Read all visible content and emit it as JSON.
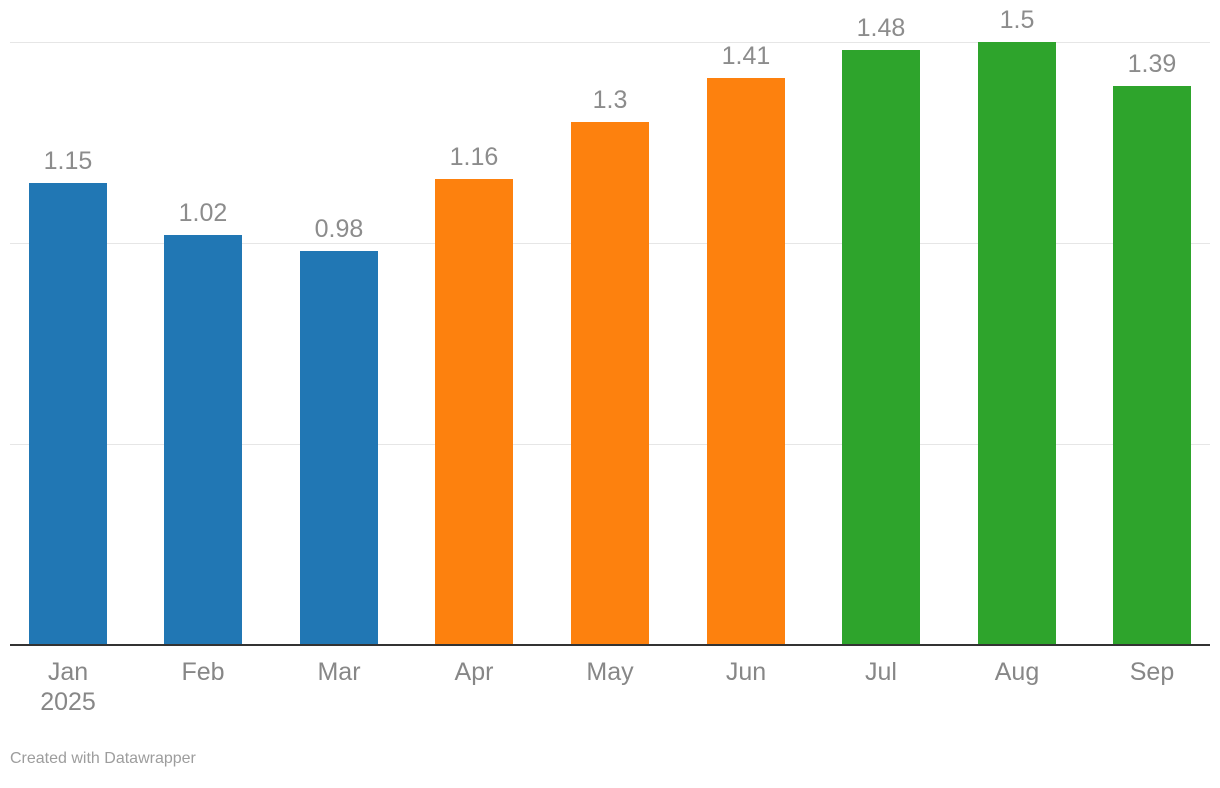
{
  "chart_data": {
    "type": "bar",
    "categories": [
      "Jan",
      "Feb",
      "Mar",
      "Apr",
      "May",
      "Jun",
      "Jul",
      "Aug",
      "Sep"
    ],
    "category_sublabels": [
      "2025",
      "",
      "",
      "",
      "",
      "",
      "",
      "",
      ""
    ],
    "values": [
      1.15,
      1.02,
      0.98,
      1.16,
      1.3,
      1.41,
      1.48,
      1.5,
      1.39
    ],
    "value_labels": [
      "1.15",
      "1.02",
      "0.98",
      "1.16",
      "1.3",
      "1.41",
      "1.48",
      "1.5",
      "1.39"
    ],
    "bar_colors": [
      "#2177b4",
      "#2177b4",
      "#2177b4",
      "#fd810e",
      "#fd810e",
      "#fd810e",
      "#2ea42c",
      "#2ea42c",
      "#2ea42c"
    ],
    "title": "",
    "xlabel": "",
    "ylabel": "",
    "ylim": [
      0,
      1.5
    ],
    "gridline_values": [
      0.5,
      1.0,
      1.5
    ],
    "grid": true,
    "legend_position": "none"
  },
  "colors": {
    "blue": "#2177b4",
    "orange": "#fd810e",
    "green": "#2ea42c",
    "gridline": "#e6e6e6",
    "axis_line": "#333333",
    "value_label": "#8c8c8c",
    "tick_label": "#878787",
    "credit": "#9d9d9d",
    "background": "#ffffff"
  },
  "footer": {
    "credit": "Created with Datawrapper"
  }
}
